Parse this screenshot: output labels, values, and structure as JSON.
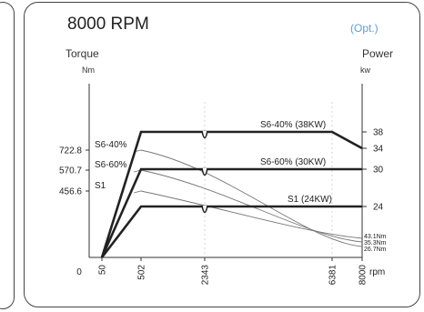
{
  "header": {
    "title": "8000 RPM",
    "option": "(Opt.)",
    "left_axis_title": "Torque",
    "left_unit": "Nm",
    "right_axis_title": "Power",
    "right_unit": "kw"
  },
  "chart_data": {
    "type": "line",
    "x_axis": {
      "label": "rpm",
      "ticks": [
        0,
        50,
        502,
        2343,
        6381,
        8000
      ],
      "range": [
        0,
        8000
      ],
      "scale": "segmented"
    },
    "y_left": {
      "label": "Torque",
      "unit": "Nm",
      "ticks": [
        456.6,
        570.7,
        722.8
      ]
    },
    "y_right": {
      "label": "Power",
      "unit": "kw",
      "ticks": [
        24,
        30,
        34,
        38
      ]
    },
    "torque_series": [
      {
        "name": "S6-40%",
        "points": [
          [
            502,
            722.8
          ],
          [
            8000,
            26.7
          ]
        ]
      },
      {
        "name": "S6-60%",
        "points": [
          [
            502,
            570.7
          ],
          [
            8000,
            35.3
          ]
        ]
      },
      {
        "name": "S1",
        "points": [
          [
            502,
            456.6
          ],
          [
            8000,
            43.1
          ]
        ]
      }
    ],
    "power_series": [
      {
        "name": "S6-40% (38KW)",
        "points": [
          [
            50,
            0
          ],
          [
            502,
            38
          ],
          [
            6381,
            38
          ],
          [
            8000,
            34
          ]
        ]
      },
      {
        "name": "S6-60% (30KW)",
        "points": [
          [
            50,
            0
          ],
          [
            502,
            30
          ],
          [
            8000,
            30
          ]
        ]
      },
      {
        "name": "S1 (24KW)",
        "points": [
          [
            50,
            0
          ],
          [
            502,
            24
          ],
          [
            8000,
            24
          ]
        ]
      }
    ],
    "end_torque_labels": [
      "43.1Nm",
      "35.3Nm",
      "26.7Nm"
    ],
    "grid": false,
    "colors": {
      "power": "#222222",
      "torque": "#777777",
      "option": "#5aa0d8"
    }
  }
}
